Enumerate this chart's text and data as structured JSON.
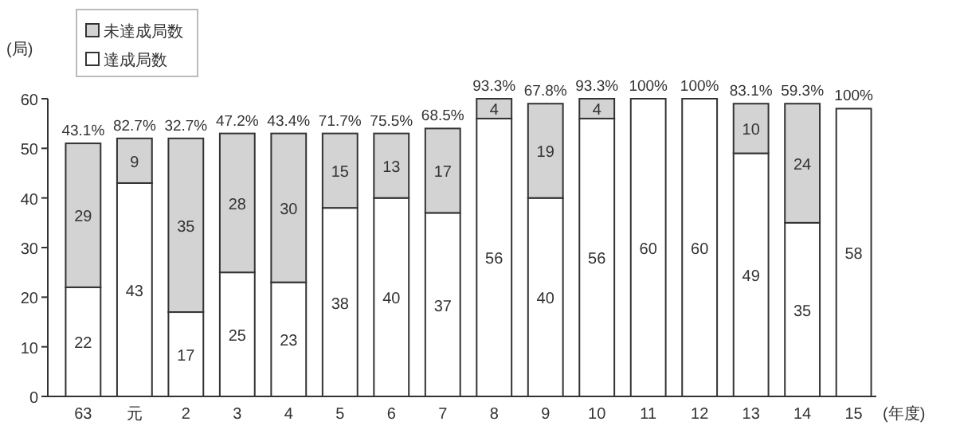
{
  "chart_data": {
    "type": "bar",
    "stacked": true,
    "categories": [
      "63",
      "元",
      "2",
      "3",
      "4",
      "5",
      "6",
      "7",
      "8",
      "9",
      "10",
      "11",
      "12",
      "13",
      "14",
      "15"
    ],
    "series": [
      {
        "name": "達成局数",
        "color": "#ffffff",
        "values": [
          22,
          43,
          17,
          25,
          23,
          38,
          40,
          37,
          56,
          40,
          56,
          60,
          60,
          49,
          35,
          58
        ],
        "value_labels": [
          "22",
          "43",
          "17",
          "25",
          "23",
          "38",
          "40",
          "37",
          "56",
          "40",
          "56",
          "60",
          "60",
          "49",
          "35",
          "58"
        ]
      },
      {
        "name": "未達成局数",
        "color": "#d3d3d3",
        "values": [
          29,
          9,
          35,
          28,
          30,
          15,
          13,
          17,
          4,
          19,
          4,
          0,
          0,
          10,
          24,
          0
        ],
        "value_labels": [
          "29",
          "9",
          "35",
          "28",
          "30",
          "15",
          "13",
          "17",
          "4",
          "19",
          "4",
          null,
          null,
          "10",
          "24",
          null
        ]
      }
    ],
    "annotations": [
      {
        "text": "43.1%",
        "x": "63",
        "y": 51
      },
      {
        "text": "82.7%",
        "x": "元",
        "y": 52
      },
      {
        "text": "32.7%",
        "x": "2",
        "y": 52
      },
      {
        "text": "47.2%",
        "x": "3",
        "y": 53
      },
      {
        "text": "43.4%",
        "x": "4",
        "y": 53
      },
      {
        "text": "71.7%",
        "x": "5",
        "y": 53
      },
      {
        "text": "75.5%",
        "x": "6",
        "y": 53
      },
      {
        "text": "68.5%",
        "x": "7",
        "y": 54
      },
      {
        "text": "93.3%",
        "x": "8",
        "y": 60
      },
      {
        "text": "67.8%",
        "x": "9",
        "y": 59
      },
      {
        "text": "93.3%",
        "x": "10",
        "y": 60
      },
      {
        "text": "100%",
        "x": "11",
        "y": 60
      },
      {
        "text": "100%",
        "x": "12",
        "y": 60
      },
      {
        "text": "83.1%",
        "x": "13",
        "y": 59
      },
      {
        "text": "59.3%",
        "x": "14",
        "y": 59
      },
      {
        "text": "100%",
        "x": "15",
        "y": 58
      }
    ],
    "ylabel": "(局)",
    "xlabel": "(年度)",
    "ylim": [
      0,
      60
    ],
    "yticks": [
      0,
      10,
      20,
      30,
      40,
      50,
      60
    ],
    "legend": "top left",
    "grid": false
  }
}
